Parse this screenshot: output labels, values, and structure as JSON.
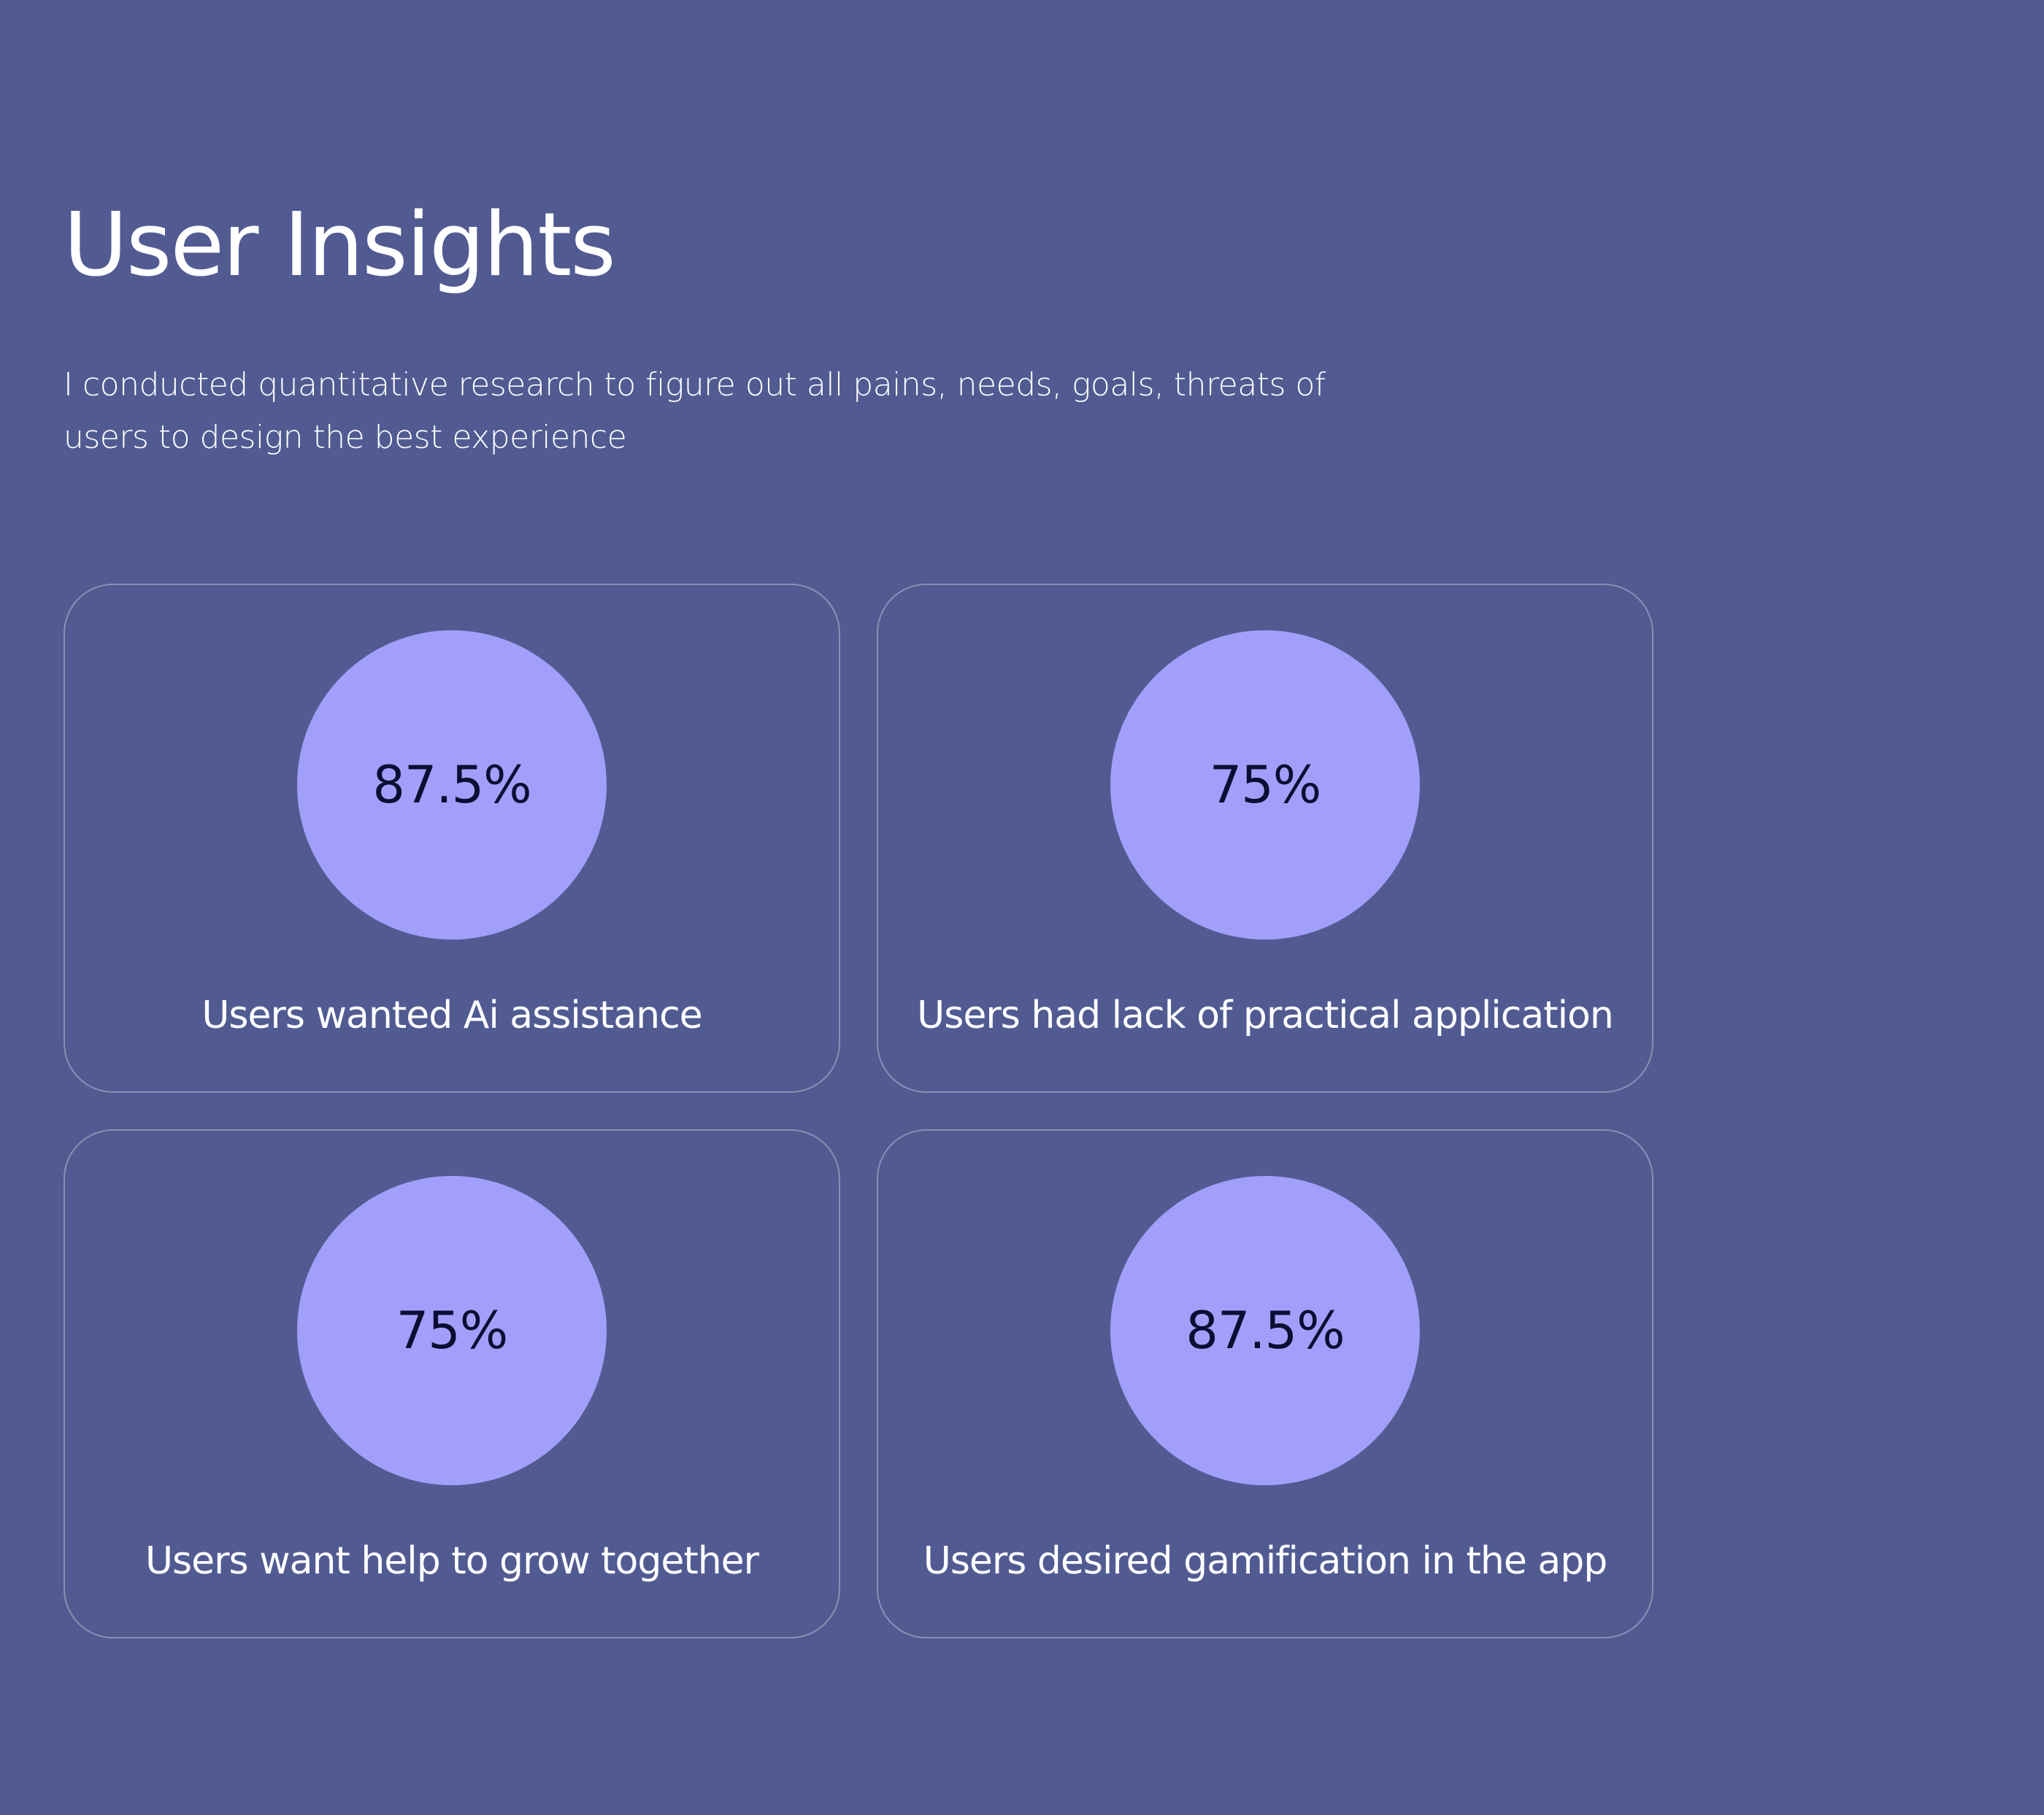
{
  "header": {
    "title": "User Insights",
    "description": "I conducted quantitative research to figure out all pains, needs, goals, threats of users to design the best experience"
  },
  "colors": {
    "background": "#515b92",
    "circle": "#a29ffb",
    "stat_text": "#0d0d33",
    "text": "#ffffff"
  },
  "insights": [
    {
      "value": "87.5%",
      "label": "Users wanted Ai assistance"
    },
    {
      "value": "75%",
      "label": "Users had lack of practical application"
    },
    {
      "value": "75%",
      "label": "Users want help to grow together"
    },
    {
      "value": "87.5%",
      "label": "Users desired gamification in the app"
    }
  ]
}
